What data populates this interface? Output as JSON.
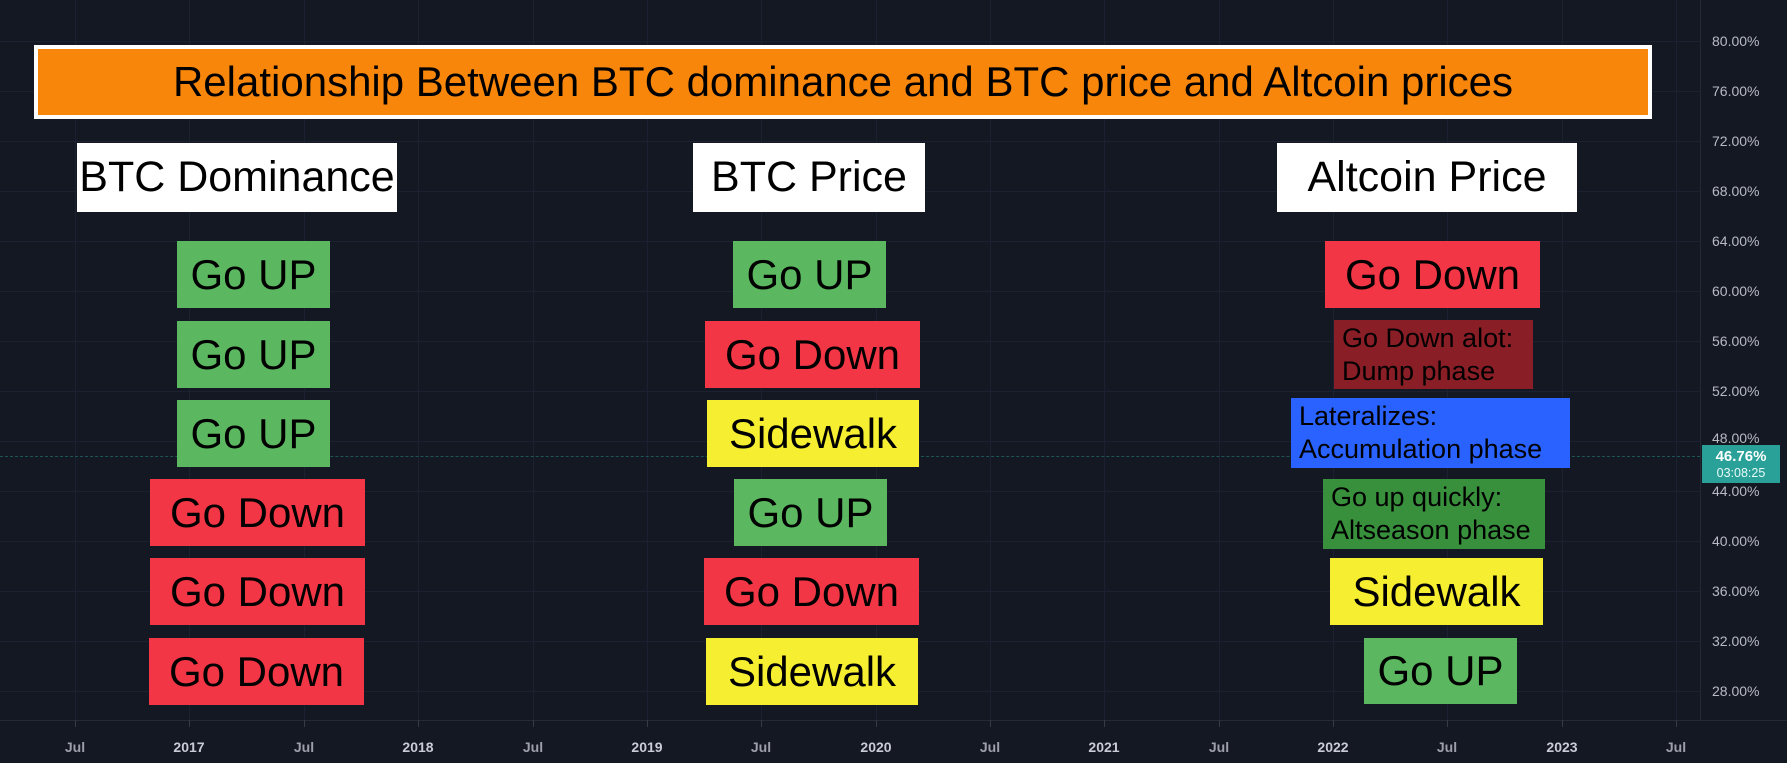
{
  "title_banner": {
    "text": "Relationship Between BTC dominance and BTC price and Altcoin prices",
    "bg_color": "#f7860b",
    "border_color": "#ffffff",
    "text_color": "#000000"
  },
  "table": {
    "columns": [
      {
        "header": "BTC Dominance",
        "rows": [
          {
            "label": "Go UP",
            "color": "#5cb860"
          },
          {
            "label": "Go UP",
            "color": "#5cb860"
          },
          {
            "label": "Go UP",
            "color": "#5cb860"
          },
          {
            "label": "Go Down",
            "color": "#f23645"
          },
          {
            "label": "Go Down",
            "color": "#f23645"
          },
          {
            "label": "Go Down",
            "color": "#f23645"
          }
        ]
      },
      {
        "header": "BTC Price",
        "rows": [
          {
            "label": "Go UP",
            "color": "#5cb860"
          },
          {
            "label": "Go Down",
            "color": "#f23645"
          },
          {
            "label": "Sidewalk",
            "color": "#f6ee30"
          },
          {
            "label": "Go UP",
            "color": "#5cb860"
          },
          {
            "label": "Go Down",
            "color": "#f23645"
          },
          {
            "label": "Sidewalk",
            "color": "#f6ee30"
          }
        ]
      },
      {
        "header": "Altcoin Price",
        "rows": [
          {
            "label": "Go Down",
            "color": "#f23645"
          },
          {
            "lines": [
              "Go Down alot:",
              "Dump phase"
            ],
            "color": "#8a1e26"
          },
          {
            "lines": [
              "Lateralizes:",
              "Accumulation phase"
            ],
            "color": "#2962ff"
          },
          {
            "lines": [
              "Go up quickly:",
              "Altseason phase"
            ],
            "color": "#38903c"
          },
          {
            "label": "Sidewalk",
            "color": "#f6ee30"
          },
          {
            "label": "Go UP",
            "color": "#5cb860"
          }
        ]
      }
    ]
  },
  "y_axis": {
    "labels": [
      "80.00%",
      "76.00%",
      "72.00%",
      "68.00%",
      "64.00%",
      "60.00%",
      "56.00%",
      "52.00%",
      "48.00%",
      "44.00%",
      "40.00%",
      "36.00%",
      "32.00%",
      "28.00%"
    ],
    "price_tag": {
      "value": "46.76%",
      "countdown": "03:08:25",
      "color": "#29a098"
    }
  },
  "x_axis": {
    "labels": [
      "Jul",
      "2017",
      "Jul",
      "2018",
      "Jul",
      "2019",
      "Jul",
      "2020",
      "Jul",
      "2021",
      "Jul",
      "2022",
      "Jul",
      "2023",
      "Jul"
    ]
  },
  "chart_data": {
    "type": "table",
    "title": "Relationship Between BTC dominance and BTC price and Altcoin prices",
    "columns": [
      "BTC Dominance",
      "BTC Price",
      "Altcoin Price"
    ],
    "rows": [
      [
        "Go UP",
        "Go UP",
        "Go Down"
      ],
      [
        "Go UP",
        "Go Down",
        "Go Down alot: Dump phase"
      ],
      [
        "Go UP",
        "Sidewalk",
        "Lateralizes: Accumulation phase"
      ],
      [
        "Go Down",
        "Go UP",
        "Go up quickly: Altseason phase"
      ],
      [
        "Go Down",
        "Go Down",
        "Sidewalk"
      ],
      [
        "Go Down",
        "Sidewalk",
        "Go UP"
      ]
    ],
    "y_axis_tick_labels": [
      "80.00%",
      "76.00%",
      "72.00%",
      "68.00%",
      "64.00%",
      "60.00%",
      "56.00%",
      "52.00%",
      "48.00%",
      "44.00%",
      "40.00%",
      "36.00%",
      "32.00%",
      "28.00%"
    ],
    "x_axis_tick_labels": [
      "Jul",
      "2017",
      "Jul",
      "2018",
      "Jul",
      "2019",
      "Jul",
      "2020",
      "Jul",
      "2021",
      "Jul",
      "2022",
      "Jul",
      "2023",
      "Jul"
    ],
    "current_value": "46.76%",
    "label_countdown": "03:08:25",
    "grid": true,
    "background_color": "#141822",
    "palette": {
      "green": "#5cb860",
      "red": "#f23645",
      "yellow": "#f6ee30",
      "dark_red": "#8a1e26",
      "blue": "#2962ff",
      "dark_green": "#38903c",
      "orange": "#f7860b",
      "teal_tag": "#29a098"
    }
  }
}
